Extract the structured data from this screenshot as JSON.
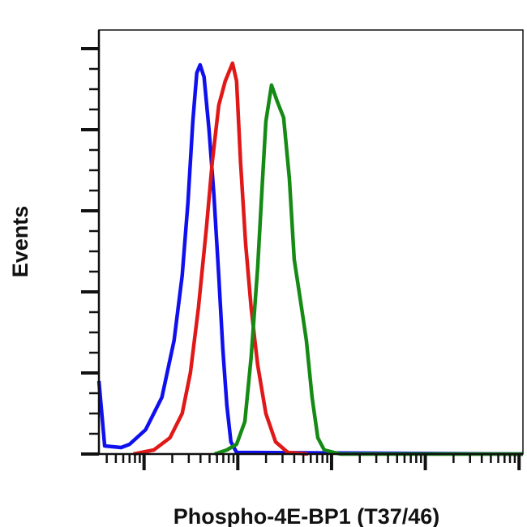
{
  "chart_data": {
    "type": "line",
    "title": "",
    "xlabel": "Phospho-4E-BP1 (T37/46)",
    "ylabel": "Events",
    "xscale": "log",
    "xlim": [
      0.33,
      11000
    ],
    "x_major_ticks": [
      1,
      10,
      100,
      1000,
      10000
    ],
    "ylim": [
      0,
      523
    ],
    "y_major_ticks": [
      0,
      100,
      200,
      300,
      400,
      500
    ],
    "tick_labels_shown": false,
    "grid": false,
    "legend": "none",
    "series": [
      {
        "color": "#1010ee",
        "x": [
          0.33,
          0.38,
          0.57,
          0.7,
          1.04,
          1.55,
          2.09,
          2.55,
          2.94,
          3.31,
          3.65,
          3.96,
          4.37,
          4.93,
          5.56,
          6.26,
          6.92,
          7.64,
          8.44,
          9.7,
          11000
        ],
        "y": [
          90,
          10,
          8,
          12,
          30,
          70,
          140,
          220,
          310,
          410,
          470,
          480,
          465,
          400,
          320,
          220,
          130,
          60,
          15,
          2,
          0
        ]
      },
      {
        "color": "#e01818",
        "x": [
          0.77,
          1.27,
          1.89,
          2.55,
          3.12,
          3.8,
          4.64,
          5.34,
          6.26,
          7.34,
          8.79,
          9.7,
          10.7,
          12.1,
          13.9,
          16.3,
          19.9,
          25.3,
          34.1,
          56.1
        ],
        "y": [
          0,
          5,
          20,
          50,
          100,
          180,
          280,
          360,
          430,
          460,
          482,
          460,
          360,
          260,
          180,
          110,
          50,
          15,
          2,
          0
        ]
      },
      {
        "color": "#158a15",
        "x": [
          5.67,
          7.64,
          9.7,
          11.9,
          13.9,
          16.3,
          18.4,
          19.9,
          22.9,
          26.3,
          30.8,
          35.5,
          40.0,
          47.9,
          53.9,
          62.0,
          71.3,
          83.6,
          124,
          11000
        ],
        "y": [
          0,
          5,
          12,
          40,
          120,
          230,
          340,
          410,
          455,
          435,
          415,
          340,
          240,
          180,
          140,
          70,
          20,
          5,
          0,
          0
        ]
      }
    ]
  }
}
